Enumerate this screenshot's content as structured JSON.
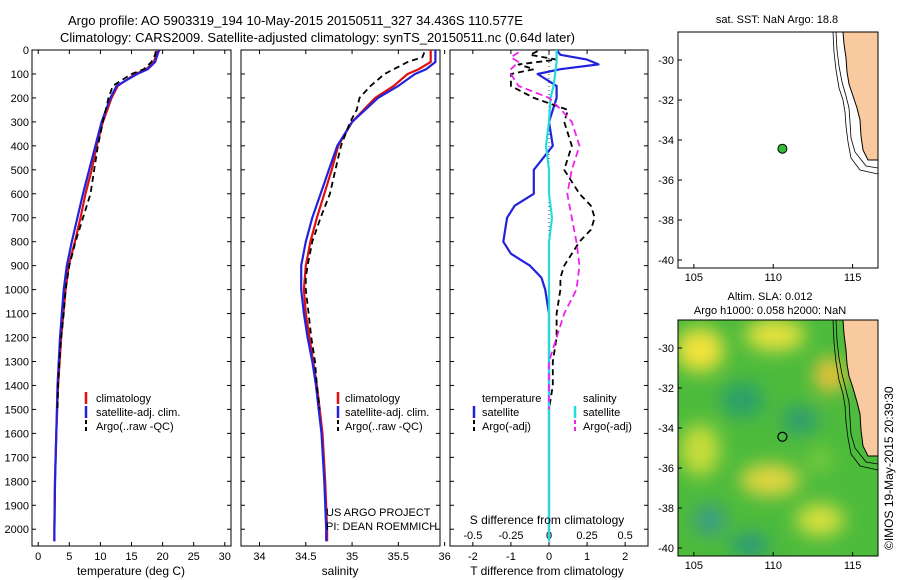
{
  "title": {
    "line1": "Argo profile: AO 5903319_194 10-May-2015 20150511_327 34.436S 110.577E",
    "line2": "Climatology: CARS2009. Satellite-adjusted climatology: synTS_20150511.nc (0.64d later)"
  },
  "side_stamp": "©IMOS 19-May-2015 20:39:30",
  "project": {
    "line1": "US ARGO PROJECT",
    "line2": "PI: DEAN ROEMMICH"
  },
  "colors": {
    "climatology": "#e01010",
    "satellite": "#2222dd",
    "argo": "#000000",
    "s_satellite": "#22dddd",
    "s_argo": "#ee22ee",
    "land": "#f9c9a0",
    "float": "#33bb33"
  },
  "chart_data": [
    {
      "type": "line",
      "name": "temperature",
      "xlabel": "temperature (deg C)",
      "xlim": [
        -1,
        31
      ],
      "ylim": [
        2070,
        0
      ],
      "xticks": [
        "0",
        "5",
        "10",
        "15",
        "20",
        "25",
        "30"
      ],
      "xtick_values": [
        0,
        5,
        10,
        15,
        20,
        25,
        30
      ],
      "yticks": [
        "0",
        "100",
        "200",
        "300",
        "400",
        "500",
        "600",
        "700",
        "800",
        "900",
        "1000",
        "1100",
        "1200",
        "1300",
        "1400",
        "1500",
        "1600",
        "1700",
        "1800",
        "1900",
        "2000"
      ],
      "legend": [
        "climatology",
        "satellite-adj. clim.",
        "Argo(..raw -QC)"
      ],
      "series": [
        {
          "name": "climatology",
          "style": "solid",
          "color": "#e01010",
          "depth": [
            0,
            10,
            50,
            80,
            100,
            150,
            200,
            300,
            400,
            500,
            600,
            700,
            800,
            900,
            1000,
            1200,
            1400,
            1600,
            1800,
            2000,
            2050
          ],
          "values": [
            19.3,
            19.1,
            18.6,
            17.4,
            15.6,
            12.8,
            11.8,
            10.4,
            9.4,
            8.6,
            7.6,
            6.8,
            5.9,
            4.9,
            4.4,
            3.7,
            3.2,
            2.9,
            2.7,
            2.6,
            2.6
          ]
        },
        {
          "name": "satellite-adj. clim.",
          "style": "solid",
          "color": "#2222dd",
          "depth": [
            0,
            10,
            50,
            80,
            100,
            150,
            200,
            300,
            400,
            500,
            600,
            700,
            800,
            900,
            1000,
            1200,
            1400,
            1600,
            1800,
            2000,
            2050
          ],
          "values": [
            19.5,
            19.3,
            18.8,
            17.6,
            15.9,
            12.6,
            11.6,
            10.2,
            9.2,
            8.2,
            7.2,
            6.3,
            5.4,
            4.6,
            4.1,
            3.5,
            3.1,
            2.9,
            2.7,
            2.6,
            2.6
          ]
        },
        {
          "name": "Argo(..raw -QC)",
          "style": "dashed",
          "color": "#000000",
          "depth": [
            5,
            20,
            50,
            80,
            100,
            150,
            200,
            300,
            400,
            500,
            600,
            700,
            800,
            900,
            1000,
            1100,
            1200,
            1300,
            1400,
            1500
          ],
          "values": [
            18.9,
            18.8,
            18.2,
            17.0,
            15.0,
            12.0,
            11.3,
            10.4,
            9.6,
            9.0,
            8.4,
            7.2,
            6.0,
            5.0,
            4.4,
            4.1,
            3.7,
            3.4,
            3.2,
            3.1
          ]
        }
      ]
    },
    {
      "type": "line",
      "name": "salinity",
      "xlabel": "salinity",
      "xlim": [
        33.8,
        35.95
      ],
      "ylim": [
        2070,
        0
      ],
      "xticks": [
        "34",
        "34.5",
        "35",
        "35.5",
        "36"
      ],
      "xtick_values": [
        34,
        34.5,
        35,
        35.5,
        36
      ],
      "legend": [
        "climatology",
        "satellite-adj. clim.",
        "Argo(..raw -QC)"
      ],
      "series": [
        {
          "name": "climatology",
          "style": "solid",
          "color": "#e01010",
          "depth": [
            0,
            20,
            50,
            80,
            100,
            150,
            200,
            300,
            400,
            500,
            600,
            700,
            800,
            900,
            1000,
            1100,
            1200,
            1300,
            1400,
            1500,
            1600,
            1800,
            2000,
            2050
          ],
          "values": [
            35.85,
            35.85,
            35.85,
            35.72,
            35.6,
            35.45,
            35.25,
            35.0,
            34.85,
            34.78,
            34.7,
            34.62,
            34.55,
            34.5,
            34.48,
            34.5,
            34.54,
            34.58,
            34.62,
            34.65,
            34.68,
            34.71,
            34.73,
            34.73
          ]
        },
        {
          "name": "satellite-adj. clim.",
          "style": "solid",
          "color": "#2222dd",
          "depth": [
            0,
            20,
            50,
            80,
            100,
            150,
            200,
            300,
            400,
            500,
            600,
            700,
            800,
            900,
            1000,
            1100,
            1200,
            1300,
            1400,
            1500,
            1600,
            1800,
            2000,
            2050
          ],
          "values": [
            35.9,
            35.9,
            35.9,
            35.8,
            35.68,
            35.5,
            35.28,
            35.0,
            34.84,
            34.75,
            34.66,
            34.57,
            34.5,
            34.45,
            34.45,
            34.48,
            34.52,
            34.57,
            34.61,
            34.64,
            34.67,
            34.7,
            34.72,
            34.72
          ]
        },
        {
          "name": "Argo(..raw -QC)",
          "style": "dashed",
          "color": "#000000",
          "depth": [
            10,
            30,
            50,
            80,
            100,
            150,
            200,
            250,
            300,
            400,
            500,
            600,
            700,
            800,
            900,
            950,
            1000,
            1100,
            1200,
            1300,
            1400,
            1500
          ],
          "values": [
            35.78,
            35.76,
            35.6,
            35.45,
            35.35,
            35.2,
            35.08,
            35.05,
            34.98,
            34.88,
            34.82,
            34.76,
            34.66,
            34.57,
            34.52,
            34.5,
            34.5,
            34.53,
            34.56,
            34.6,
            34.62,
            34.65
          ]
        }
      ]
    },
    {
      "type": "line",
      "name": "difference_from_climatology",
      "xlabel": "T difference from climatology",
      "xlabel_top": "S difference from climatology",
      "xlim": [
        -2.6,
        2.6
      ],
      "ylim": [
        2070,
        0
      ],
      "xticks": [
        "-2",
        "-1",
        "0",
        "1",
        "2"
      ],
      "xtick_values": [
        -2,
        -1,
        0,
        1,
        2
      ],
      "s_xticks": [
        "-0.5",
        "-0.25",
        "0",
        "0.25",
        "0.5"
      ],
      "s_xtick_values": [
        -0.5,
        -0.25,
        0,
        0.25,
        0.5
      ],
      "s_scale": 4,
      "legend": {
        "temperature_header": "temperature",
        "salinity_header": "salinity",
        "t_satellite": "satellite",
        "t_argo": "Argo(-adj)",
        "s_satellite": "satellite",
        "s_argo": "Argo(-adj)"
      },
      "series": [
        {
          "name": "T satellite",
          "style": "solid",
          "color": "#2222dd",
          "depth": [
            0,
            20,
            40,
            60,
            80,
            100,
            150,
            200,
            250,
            300,
            400,
            500,
            600,
            650,
            700,
            800,
            850,
            900,
            950,
            1000,
            1100,
            1200,
            1500,
            2000,
            2050
          ],
          "values": [
            0.2,
            0.3,
            1.0,
            1.3,
            0.3,
            -0.3,
            0.2,
            0.2,
            0.1,
            0.0,
            0.1,
            -0.4,
            -0.4,
            -0.9,
            -1.1,
            -1.2,
            -1.0,
            -0.5,
            -0.2,
            -0.1,
            0.0,
            0.0,
            0.0,
            0.0,
            0.0
          ]
        },
        {
          "name": "T Argo(-adj)",
          "style": "dashed",
          "color": "#000000",
          "depth": [
            5,
            20,
            40,
            60,
            80,
            100,
            150,
            200,
            250,
            300,
            400,
            500,
            600,
            650,
            700,
            750,
            800,
            900,
            950,
            1000,
            1100,
            1200,
            1300,
            1400,
            1500
          ],
          "values": [
            -0.3,
            -0.5,
            0.2,
            -0.8,
            -0.4,
            -1.0,
            -1.0,
            -0.4,
            0.5,
            0.4,
            0.6,
            0.4,
            0.8,
            1.1,
            1.2,
            1.1,
            0.8,
            0.4,
            0.3,
            0.3,
            0.2,
            0.2,
            0.1,
            0.1,
            0.0
          ]
        },
        {
          "name": "S satellite",
          "style": "solid",
          "color": "#22dddd",
          "depth": [
            0,
            50,
            100,
            150,
            200,
            300,
            400,
            500,
            600,
            700,
            800,
            900,
            1000,
            1200,
            1500,
            2000,
            2050
          ],
          "values": [
            0.05,
            0.05,
            0.04,
            0.03,
            0.01,
            0.0,
            -0.02,
            0.0,
            0.0,
            0.02,
            0.0,
            0.0,
            0.0,
            0.0,
            0.0,
            0.0,
            0.0
          ]
        },
        {
          "name": "S Argo(-adj)",
          "style": "dashed",
          "color": "#ee22ee",
          "depth": [
            10,
            30,
            50,
            80,
            100,
            150,
            200,
            250,
            300,
            400,
            500,
            600,
            700,
            800,
            900,
            1000,
            1100,
            1200,
            1300,
            1400,
            1500
          ],
          "values": [
            -0.2,
            -0.25,
            -0.2,
            -0.25,
            -0.25,
            -0.2,
            0.0,
            0.08,
            0.15,
            0.2,
            0.15,
            0.12,
            0.15,
            0.18,
            0.2,
            0.18,
            0.1,
            0.05,
            0.0,
            0.0,
            0.0
          ]
        }
      ]
    },
    {
      "type": "map",
      "name": "sst_map",
      "title": "sat. SST: NaN Argo: 18.8",
      "xlim": [
        104,
        116.6
      ],
      "ylim": [
        -40.4,
        -28.6
      ],
      "xticks": [
        "105",
        "110",
        "115"
      ],
      "xtick_values": [
        105,
        110,
        115
      ],
      "yticks": [
        "-30",
        "-32",
        "-34",
        "-36",
        "-38",
        "-40"
      ],
      "ytick_values": [
        -30,
        -32,
        -34,
        -36,
        -38,
        -40
      ],
      "float_position": {
        "lon": 110.577,
        "lat": -34.436
      }
    },
    {
      "type": "heatmap",
      "name": "altim_map",
      "title_line1": "Altim. SLA: 0.012",
      "title_line2": "Argo h1000: 0.058 h2000: NaN",
      "xlim": [
        104,
        116.6
      ],
      "ylim": [
        -40.4,
        -28.6
      ],
      "xticks": [
        "105",
        "110",
        "115"
      ],
      "xtick_values": [
        105,
        110,
        115
      ],
      "yticks": [
        "-30",
        "-32",
        "-34",
        "-36",
        "-38",
        "-40"
      ],
      "ytick_values": [
        -30,
        -32,
        -34,
        -36,
        -38,
        -40
      ],
      "float_position": {
        "lon": 110.577,
        "lat": -34.436
      }
    }
  ]
}
